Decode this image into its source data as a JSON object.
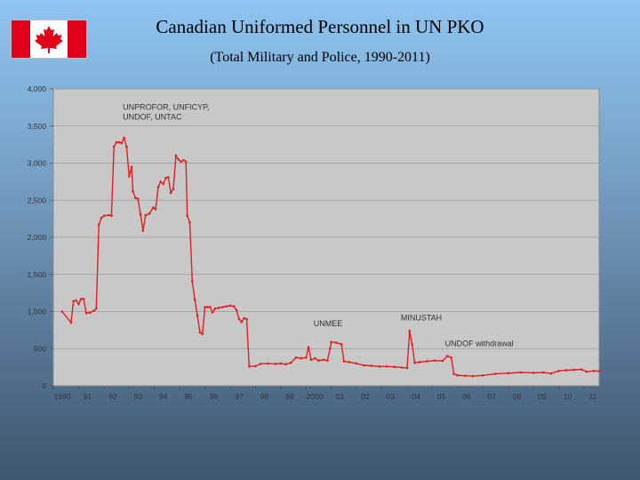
{
  "title": "Canadian Uniformed Personnel in UN PKO",
  "subtitle": "(Total Military and Police, 1990-2011)",
  "colors": {
    "flag_red": "#e0001a",
    "plot_bg": "#c8c8c8",
    "grid": "#9a9a9a",
    "line": "#e21f1f"
  },
  "chart_data": {
    "type": "line",
    "grid": true,
    "legend": "none",
    "xlim": [
      1990,
      2011.6
    ],
    "ylim": [
      0,
      4000
    ],
    "y_ticks": [
      0,
      500,
      1000,
      1500,
      2000,
      2500,
      3000,
      3500,
      4000
    ],
    "y_tick_labels": [
      "0",
      "500",
      "1,000",
      "1,500",
      "2,000",
      "2,500",
      "3,000",
      "3,500",
      "4,000"
    ],
    "x_ticks": [
      1990,
      1991,
      1992,
      1993,
      1994,
      1995,
      1996,
      1997,
      1998,
      1999,
      2000,
      2001,
      2002,
      2003,
      2004,
      2005,
      2006,
      2007,
      2008,
      2009,
      2010,
      2011
    ],
    "x_tick_labels": [
      "1990",
      "91",
      "92",
      "93",
      "94",
      "95",
      "96",
      "97",
      "98",
      "99",
      "2000",
      "01",
      "02",
      "03",
      "04",
      "05",
      "06",
      "07",
      "08",
      "09",
      "10",
      "11"
    ],
    "annotations": [
      {
        "lines": [
          "UNPROFOR, UNFICYP,",
          "UNDOF, UNTAC"
        ],
        "x": 1992.75,
        "y": 3720
      },
      {
        "lines": [
          "UNMEE"
        ],
        "x": 2000.3,
        "y": 800
      },
      {
        "lines": [
          "MINUSTAH"
        ],
        "x": 2003.75,
        "y": 880
      },
      {
        "lines": [
          "UNDOF withdrawal"
        ],
        "x": 2005.5,
        "y": 530
      }
    ],
    "series": [
      {
        "values": [
          [
            1990.35,
            1000
          ],
          [
            1990.7,
            850
          ],
          [
            1990.8,
            1140
          ],
          [
            1990.9,
            1150
          ],
          [
            1991.0,
            1100
          ],
          [
            1991.1,
            1170
          ],
          [
            1991.2,
            1170
          ],
          [
            1991.3,
            980
          ],
          [
            1991.45,
            985
          ],
          [
            1991.6,
            1010
          ],
          [
            1991.7,
            1040
          ],
          [
            1991.8,
            2170
          ],
          [
            1991.9,
            2260
          ],
          [
            1992.0,
            2290
          ],
          [
            1992.2,
            2300
          ],
          [
            1992.3,
            2290
          ],
          [
            1992.4,
            3220
          ],
          [
            1992.5,
            3280
          ],
          [
            1992.6,
            3280
          ],
          [
            1992.7,
            3270
          ],
          [
            1992.8,
            3340
          ],
          [
            1992.9,
            3220
          ],
          [
            1993.0,
            2820
          ],
          [
            1993.1,
            2950
          ],
          [
            1993.15,
            2620
          ],
          [
            1993.25,
            2530
          ],
          [
            1993.35,
            2520
          ],
          [
            1993.45,
            2310
          ],
          [
            1993.55,
            2090
          ],
          [
            1993.65,
            2300
          ],
          [
            1993.8,
            2320
          ],
          [
            1993.95,
            2400
          ],
          [
            1994.05,
            2380
          ],
          [
            1994.15,
            2680
          ],
          [
            1994.25,
            2750
          ],
          [
            1994.35,
            2720
          ],
          [
            1994.45,
            2800
          ],
          [
            1994.55,
            2810
          ],
          [
            1994.65,
            2600
          ],
          [
            1994.75,
            2650
          ],
          [
            1994.85,
            3100
          ],
          [
            1994.95,
            3050
          ],
          [
            1995.05,
            3020
          ],
          [
            1995.15,
            3040
          ],
          [
            1995.25,
            3020
          ],
          [
            1995.3,
            2290
          ],
          [
            1995.4,
            2200
          ],
          [
            1995.5,
            1410
          ],
          [
            1995.6,
            1160
          ],
          [
            1995.7,
            950
          ],
          [
            1995.8,
            720
          ],
          [
            1995.9,
            700
          ],
          [
            1996.0,
            1060
          ],
          [
            1996.1,
            1060
          ],
          [
            1996.2,
            1060
          ],
          [
            1996.3,
            990
          ],
          [
            1996.4,
            1040
          ],
          [
            1996.55,
            1050
          ],
          [
            1996.7,
            1060
          ],
          [
            1996.85,
            1070
          ],
          [
            1997.0,
            1080
          ],
          [
            1997.15,
            1070
          ],
          [
            1997.25,
            1020
          ],
          [
            1997.35,
            900
          ],
          [
            1997.45,
            860
          ],
          [
            1997.55,
            910
          ],
          [
            1997.65,
            900
          ],
          [
            1997.75,
            260
          ],
          [
            1998.0,
            265
          ],
          [
            1998.2,
            295
          ],
          [
            1998.5,
            300
          ],
          [
            1998.8,
            295
          ],
          [
            1999.0,
            300
          ],
          [
            1999.2,
            290
          ],
          [
            1999.4,
            310
          ],
          [
            1999.6,
            380
          ],
          [
            1999.8,
            370
          ],
          [
            2000.0,
            380
          ],
          [
            2000.1,
            520
          ],
          [
            2000.2,
            350
          ],
          [
            2000.35,
            370
          ],
          [
            2000.5,
            340
          ],
          [
            2000.7,
            350
          ],
          [
            2000.85,
            340
          ],
          [
            2000.95,
            500
          ],
          [
            2001.0,
            590
          ],
          [
            2001.2,
            580
          ],
          [
            2001.4,
            560
          ],
          [
            2001.5,
            330
          ],
          [
            2001.7,
            320
          ],
          [
            2002.0,
            300
          ],
          [
            2002.3,
            275
          ],
          [
            2002.6,
            270
          ],
          [
            2002.9,
            260
          ],
          [
            2003.2,
            260
          ],
          [
            2003.5,
            255
          ],
          [
            2003.8,
            245
          ],
          [
            2004.0,
            240
          ],
          [
            2004.1,
            740
          ],
          [
            2004.2,
            560
          ],
          [
            2004.3,
            310
          ],
          [
            2004.5,
            320
          ],
          [
            2004.8,
            330
          ],
          [
            2005.1,
            340
          ],
          [
            2005.4,
            335
          ],
          [
            2005.6,
            400
          ],
          [
            2005.75,
            380
          ],
          [
            2005.85,
            160
          ],
          [
            2006.0,
            140
          ],
          [
            2006.3,
            135
          ],
          [
            2006.6,
            130
          ],
          [
            2007.0,
            140
          ],
          [
            2007.5,
            160
          ],
          [
            2008.0,
            170
          ],
          [
            2008.5,
            180
          ],
          [
            2009.0,
            175
          ],
          [
            2009.4,
            180
          ],
          [
            2009.7,
            165
          ],
          [
            2010.0,
            200
          ],
          [
            2010.3,
            210
          ],
          [
            2010.6,
            215
          ],
          [
            2010.9,
            220
          ],
          [
            2011.1,
            190
          ],
          [
            2011.4,
            200
          ],
          [
            2011.6,
            195
          ]
        ]
      }
    ]
  }
}
